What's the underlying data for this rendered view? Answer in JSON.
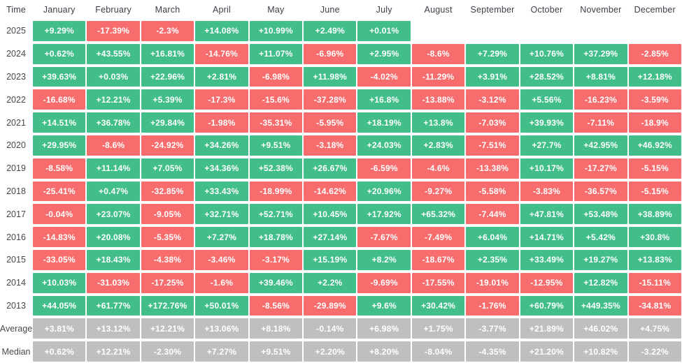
{
  "chart_data": {
    "type": "heatmap",
    "corner_label": "Time",
    "columns": [
      "January",
      "February",
      "March",
      "April",
      "May",
      "June",
      "July",
      "August",
      "September",
      "October",
      "November",
      "December"
    ],
    "rows": [
      {
        "label": "2025",
        "kind": "year",
        "values": [
          "+9.29%",
          "-17.39%",
          "-2.3%",
          "+14.08%",
          "+10.99%",
          "+2.49%",
          "+0.01%",
          "",
          "",
          "",
          "",
          ""
        ]
      },
      {
        "label": "2024",
        "kind": "year",
        "values": [
          "+0.62%",
          "+43.55%",
          "+16.81%",
          "-14.76%",
          "+11.07%",
          "-6.96%",
          "+2.95%",
          "-8.6%",
          "+7.29%",
          "+10.76%",
          "+37.29%",
          "-2.85%"
        ]
      },
      {
        "label": "2023",
        "kind": "year",
        "values": [
          "+39.63%",
          "+0.03%",
          "+22.96%",
          "+2.81%",
          "-6.98%",
          "+11.98%",
          "-4.02%",
          "-11.29%",
          "+3.91%",
          "+28.52%",
          "+8.81%",
          "+12.18%"
        ]
      },
      {
        "label": "2022",
        "kind": "year",
        "values": [
          "-16.68%",
          "+12.21%",
          "+5.39%",
          "-17.3%",
          "-15.6%",
          "-37.28%",
          "+16.8%",
          "-13.88%",
          "-3.12%",
          "+5.56%",
          "-16.23%",
          "-3.59%"
        ]
      },
      {
        "label": "2021",
        "kind": "year",
        "values": [
          "+14.51%",
          "+36.78%",
          "+29.84%",
          "-1.98%",
          "-35.31%",
          "-5.95%",
          "+18.19%",
          "+13.8%",
          "-7.03%",
          "+39.93%",
          "-7.11%",
          "-18.9%"
        ]
      },
      {
        "label": "2020",
        "kind": "year",
        "values": [
          "+29.95%",
          "-8.6%",
          "-24.92%",
          "+34.26%",
          "+9.51%",
          "-3.18%",
          "+24.03%",
          "+2.83%",
          "-7.51%",
          "+27.7%",
          "+42.95%",
          "+46.92%"
        ]
      },
      {
        "label": "2019",
        "kind": "year",
        "values": [
          "-8.58%",
          "+11.14%",
          "+7.05%",
          "+34.36%",
          "+52.38%",
          "+26.67%",
          "-6.59%",
          "-4.6%",
          "-13.38%",
          "+10.17%",
          "-17.27%",
          "-5.15%"
        ]
      },
      {
        "label": "2018",
        "kind": "year",
        "values": [
          "-25.41%",
          "+0.47%",
          "-32.85%",
          "+33.43%",
          "-18.99%",
          "-14.62%",
          "+20.96%",
          "-9.27%",
          "-5.58%",
          "-3.83%",
          "-36.57%",
          "-5.15%"
        ]
      },
      {
        "label": "2017",
        "kind": "year",
        "values": [
          "-0.04%",
          "+23.07%",
          "-9.05%",
          "+32.71%",
          "+52.71%",
          "+10.45%",
          "+17.92%",
          "+65.32%",
          "-7.44%",
          "+47.81%",
          "+53.48%",
          "+38.89%"
        ]
      },
      {
        "label": "2016",
        "kind": "year",
        "values": [
          "-14.83%",
          "+20.08%",
          "-5.35%",
          "+7.27%",
          "+18.78%",
          "+27.14%",
          "-7.67%",
          "-7.49%",
          "+6.04%",
          "+14.71%",
          "+5.42%",
          "+30.8%"
        ]
      },
      {
        "label": "2015",
        "kind": "year",
        "values": [
          "-33.05%",
          "+18.43%",
          "-4.38%",
          "-3.46%",
          "-3.17%",
          "+15.19%",
          "+8.2%",
          "-18.67%",
          "+2.35%",
          "+33.49%",
          "+19.27%",
          "+13.83%"
        ]
      },
      {
        "label": "2014",
        "kind": "year",
        "values": [
          "+10.03%",
          "-31.03%",
          "-17.25%",
          "-1.6%",
          "+39.46%",
          "+2.2%",
          "-9.69%",
          "-17.55%",
          "-19.01%",
          "-12.95%",
          "+12.82%",
          "-15.11%"
        ]
      },
      {
        "label": "2013",
        "kind": "year",
        "values": [
          "+44.05%",
          "+61.77%",
          "+172.76%",
          "+50.01%",
          "-8.56%",
          "-29.89%",
          "+9.6%",
          "+30.42%",
          "-1.76%",
          "+60.79%",
          "+449.35%",
          "-34.81%"
        ]
      },
      {
        "label": "Average",
        "kind": "summary",
        "values": [
          "+3.81%",
          "+13.12%",
          "+12.21%",
          "+13.06%",
          "+8.18%",
          "-0.14%",
          "+6.98%",
          "+1.75%",
          "-3.77%",
          "+21.89%",
          "+46.02%",
          "+4.75%"
        ]
      },
      {
        "label": "Median",
        "kind": "summary",
        "values": [
          "+0.62%",
          "+12.21%",
          "-2.30%",
          "+7.27%",
          "+9.51%",
          "+2.20%",
          "+8.20%",
          "-8.04%",
          "-4.35%",
          "+21.20%",
          "+10.82%",
          "-3.22%"
        ]
      }
    ],
    "colors": {
      "positive": "#42be8b",
      "negative": "#f76d6e",
      "summary": "#bfbfbf",
      "cell_text": "#ffffff",
      "header_text": "#3d4049",
      "background": "#ffffff"
    },
    "legend_position": "none",
    "grid": false
  }
}
